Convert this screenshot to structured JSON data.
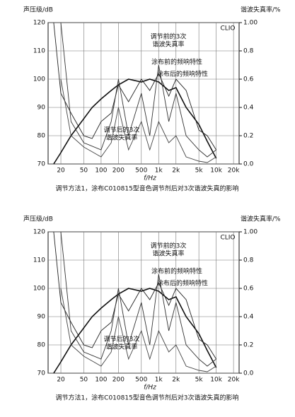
{
  "chart_data": [
    {
      "type": "line",
      "y_label": "声压级/dB",
      "y2_label": "谐波失真率/%",
      "x_label": "f/Hz",
      "badge": "CLIO",
      "caption": "调节方法1，涂布C010815型音色调节剂后对3次谐波失真的影响",
      "xlog": true,
      "grid": true,
      "xlim": [
        12,
        25000
      ],
      "xticks": [
        20,
        50,
        100,
        200,
        500,
        {
          "value": 1000,
          "label": "1k"
        },
        {
          "value": 2000,
          "label": "2k"
        },
        {
          "value": 5000,
          "label": "5k"
        },
        {
          "value": 10000,
          "label": "10k"
        },
        {
          "value": 20000,
          "label": "20k"
        }
      ],
      "ylim": [
        70,
        120
      ],
      "yticks": [
        70,
        80,
        90,
        100,
        110,
        120
      ],
      "y2lim": [
        0,
        1
      ],
      "y2ticks": [
        {
          "value": 0,
          "label": "0.0"
        },
        0.2,
        0.4,
        0.6,
        0.8,
        {
          "value": 1,
          "label": "1.00"
        }
      ],
      "series": [
        {
          "label_lines": [
            "涂布前的频响特性"
          ],
          "color": "#111",
          "width": 1.6,
          "x": [
            15,
            20,
            30,
            50,
            70,
            100,
            150,
            200,
            300,
            500,
            700,
            1000,
            1500,
            2000,
            3000,
            5000,
            7000,
            10000
          ],
          "values": [
            70,
            74,
            80,
            86,
            90,
            93,
            96,
            98,
            100,
            99,
            100,
            99,
            96,
            97,
            90,
            84,
            78,
            72
          ]
        },
        {
          "label_lines": [
            "涂布后的频响特性"
          ],
          "color": "#222",
          "width": 0.9,
          "x": [
            15,
            20,
            30,
            50,
            70,
            100,
            150,
            200,
            300,
            500,
            700,
            1000,
            1500,
            2000,
            3000,
            5000,
            7000,
            10000
          ],
          "values": [
            120,
            95,
            88,
            80,
            79,
            85,
            88,
            98,
            92,
            100,
            96,
            102,
            94,
            100,
            96,
            82,
            80,
            75
          ]
        },
        {
          "label_lines": [
            "调节前的3次",
            "谐波失真率"
          ],
          "color": "#333",
          "width": 0.9,
          "axis": "y2",
          "x": [
            20,
            30,
            50,
            100,
            150,
            200,
            300,
            500,
            700,
            1000,
            1500,
            2000,
            3000,
            5000,
            7000,
            10000
          ],
          "values": [
            1.0,
            0.3,
            0.15,
            0.1,
            0.3,
            0.6,
            0.2,
            0.5,
            0.2,
            0.7,
            0.3,
            0.5,
            0.2,
            0.1,
            0.05,
            0.1
          ]
        },
        {
          "label_lines": [
            "调节后的3次",
            "谐波失真率"
          ],
          "color": "#444",
          "width": 0.9,
          "axis": "y2",
          "x": [
            20,
            30,
            50,
            100,
            150,
            200,
            300,
            500,
            700,
            1000,
            1500,
            2000,
            3000,
            5000,
            7000,
            10000
          ],
          "values": [
            0.6,
            0.2,
            0.12,
            0.05,
            0.15,
            0.4,
            0.1,
            0.3,
            0.1,
            0.3,
            0.15,
            0.2,
            0.05,
            0.02,
            0.01,
            0.05
          ]
        }
      ]
    },
    {
      "type": "line",
      "y_label": "声压级/dB",
      "y2_label": "谐波失真率/%",
      "x_label": "f/Hz",
      "badge": "CLIO",
      "caption": "调节方法1，涂布C010815型音色调节剂后对3次谐波失真的影响",
      "xlog": true,
      "grid": true,
      "xlim": [
        12,
        25000
      ],
      "xticks": [
        20,
        50,
        100,
        200,
        500,
        {
          "value": 1000,
          "label": "1k"
        },
        {
          "value": 2000,
          "label": "2k"
        },
        {
          "value": 5000,
          "label": "5k"
        },
        {
          "value": 10000,
          "label": "10k"
        },
        {
          "value": 20000,
          "label": "20k"
        }
      ],
      "ylim": [
        70,
        120
      ],
      "yticks": [
        70,
        80,
        90,
        100,
        110,
        120
      ],
      "y2lim": [
        0,
        1
      ],
      "y2ticks": [
        {
          "value": 0,
          "label": "0.0"
        },
        0.2,
        0.4,
        0.6,
        0.8,
        {
          "value": 1,
          "label": "1.00"
        }
      ],
      "series": [
        {
          "label_lines": [
            "涂布前的频响特性"
          ],
          "color": "#111",
          "width": 1.6,
          "x": [
            15,
            20,
            30,
            50,
            70,
            100,
            150,
            200,
            300,
            500,
            700,
            1000,
            1500,
            2000,
            3000,
            5000,
            7000,
            10000
          ],
          "values": [
            70,
            74,
            80,
            86,
            90,
            93,
            96,
            98,
            100,
            99,
            100,
            99,
            96,
            97,
            90,
            84,
            78,
            72
          ]
        },
        {
          "label_lines": [
            "涂布后的频响特性"
          ],
          "color": "#222",
          "width": 0.9,
          "x": [
            15,
            20,
            30,
            50,
            70,
            100,
            150,
            200,
            300,
            500,
            700,
            1000,
            1500,
            2000,
            3000,
            5000,
            7000,
            10000
          ],
          "values": [
            120,
            95,
            88,
            80,
            79,
            85,
            88,
            98,
            92,
            100,
            96,
            102,
            94,
            100,
            96,
            82,
            80,
            75
          ]
        },
        {
          "label_lines": [
            "调节前的3次",
            "谐波失真率"
          ],
          "color": "#333",
          "width": 0.9,
          "axis": "y2",
          "x": [
            20,
            30,
            50,
            100,
            150,
            200,
            300,
            500,
            700,
            1000,
            1500,
            2000,
            3000,
            5000,
            7000,
            10000
          ],
          "values": [
            1.0,
            0.3,
            0.15,
            0.1,
            0.3,
            0.6,
            0.2,
            0.5,
            0.2,
            0.7,
            0.3,
            0.5,
            0.2,
            0.1,
            0.05,
            0.1
          ]
        },
        {
          "label_lines": [
            "调节后的3次",
            "谐波失真率"
          ],
          "color": "#444",
          "width": 0.9,
          "axis": "y2",
          "x": [
            20,
            30,
            50,
            100,
            150,
            200,
            300,
            500,
            700,
            1000,
            1500,
            2000,
            3000,
            5000,
            7000,
            10000
          ],
          "values": [
            0.6,
            0.2,
            0.12,
            0.05,
            0.15,
            0.4,
            0.1,
            0.3,
            0.1,
            0.3,
            0.15,
            0.2,
            0.05,
            0.02,
            0.01,
            0.05
          ]
        }
      ]
    }
  ]
}
